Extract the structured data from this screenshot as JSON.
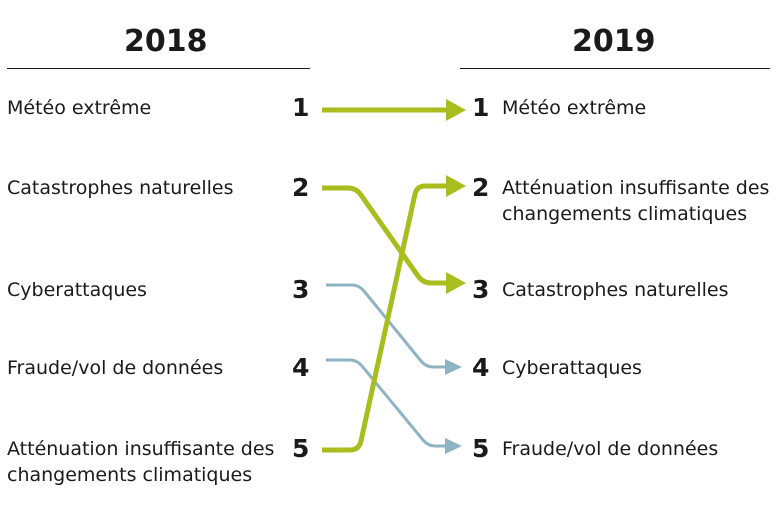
{
  "colors": {
    "highlight": "#A9BE1E",
    "other": "#8EB3C3"
  },
  "left": {
    "year": "2018",
    "items": [
      {
        "rank": "1",
        "label": [
          "Météo extrême"
        ]
      },
      {
        "rank": "2",
        "label": [
          "Catastrophes naturelles"
        ]
      },
      {
        "rank": "3",
        "label": [
          "Cyberattaques"
        ]
      },
      {
        "rank": "4",
        "label": [
          "Fraude/vol de données"
        ]
      },
      {
        "rank": "5",
        "label": [
          "Atténuation insuffisante des",
          "changements climatiques"
        ]
      }
    ]
  },
  "right": {
    "year": "2019",
    "items": [
      {
        "rank": "1",
        "label": [
          "Météo extrême"
        ]
      },
      {
        "rank": "2",
        "label": [
          "Atténuation insuffisante des",
          "changements climatiques"
        ]
      },
      {
        "rank": "3",
        "label": [
          "Catastrophes naturelles"
        ]
      },
      {
        "rank": "4",
        "label": [
          "Cyberattaques"
        ]
      },
      {
        "rank": "5",
        "label": [
          "Fraude/vol de données"
        ]
      }
    ]
  },
  "moves": [
    {
      "from": 1,
      "to": 1,
      "highlight": true
    },
    {
      "from": 2,
      "to": 3,
      "highlight": true
    },
    {
      "from": 3,
      "to": 4,
      "highlight": false
    },
    {
      "from": 4,
      "to": 5,
      "highlight": false
    },
    {
      "from": 5,
      "to": 2,
      "highlight": true
    }
  ]
}
